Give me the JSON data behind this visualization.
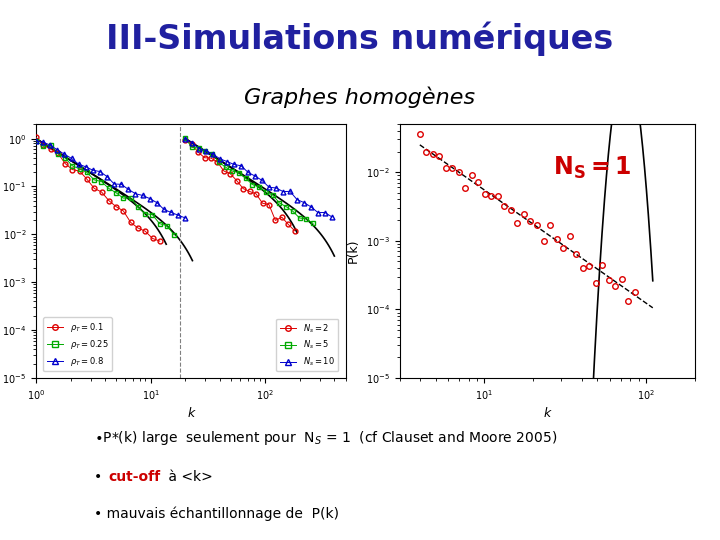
{
  "title": "III-Simulations numériques",
  "subtitle": "Graphes homogènes",
  "title_color": "#2020a0",
  "subtitle_color": "#000000",
  "background_color": "#ffffff",
  "ns_color": "#cc0000",
  "bullet1": "•P*(k) large  seulement pour  Nₛ = 1  (cf Clauset and Moore 2005)",
  "bullet2_pre": "• ",
  "bullet2_red": "cut-off",
  "bullet2_end": " à <k>",
  "bullet3": "• mauvais échantillonnage de  P(k)",
  "leg1_labels": [
    "$\\rho_T=0.1$",
    "$\\rho_T=0.25$",
    "$\\rho_T=0.8$"
  ],
  "leg2_labels": [
    "$N_s=2$",
    "$N_s=5$",
    "$N_s=10$"
  ],
  "red_color": "#dd0000",
  "green_color": "#00aa00",
  "blue_color": "#0000cc"
}
